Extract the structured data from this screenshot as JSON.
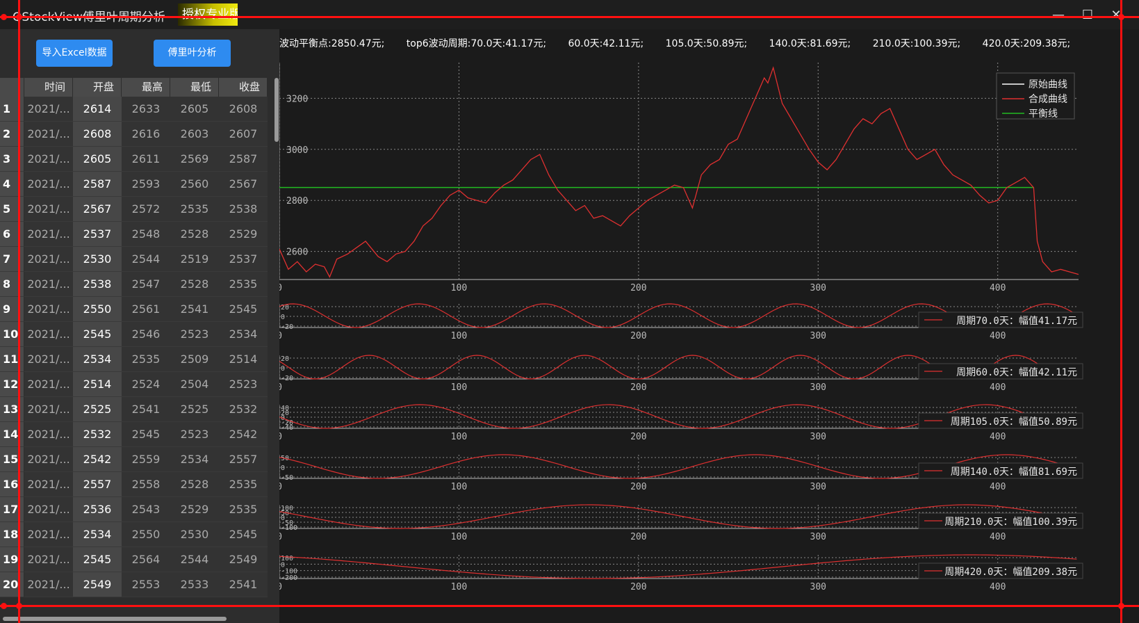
{
  "window": {
    "title": "QStockView傅里叶周期分析",
    "license_badge": "授权专业版",
    "min_glyph": "—",
    "max_glyph": "☐",
    "close_glyph": "✕"
  },
  "toolbar": {
    "import_label": "导入Excel数据",
    "fourier_label": "傅里叶分析"
  },
  "table": {
    "headers": [
      "",
      "时间",
      "开盘",
      "最高",
      "最低",
      "收盘"
    ],
    "rows": [
      [
        "1",
        "2021/...",
        "2614",
        "2633",
        "2605",
        "2608"
      ],
      [
        "2",
        "2021/...",
        "2608",
        "2616",
        "2603",
        "2607"
      ],
      [
        "3",
        "2021/...",
        "2605",
        "2611",
        "2569",
        "2587"
      ],
      [
        "4",
        "2021/...",
        "2587",
        "2593",
        "2560",
        "2567"
      ],
      [
        "5",
        "2021/...",
        "2567",
        "2572",
        "2535",
        "2538"
      ],
      [
        "6",
        "2021/...",
        "2537",
        "2548",
        "2528",
        "2529"
      ],
      [
        "7",
        "2021/...",
        "2530",
        "2544",
        "2519",
        "2537"
      ],
      [
        "8",
        "2021/...",
        "2538",
        "2547",
        "2528",
        "2535"
      ],
      [
        "9",
        "2021/...",
        "2550",
        "2561",
        "2541",
        "2545"
      ],
      [
        "10",
        "2021/...",
        "2545",
        "2546",
        "2523",
        "2534"
      ],
      [
        "11",
        "2021/...",
        "2534",
        "2535",
        "2509",
        "2514"
      ],
      [
        "12",
        "2021/...",
        "2514",
        "2524",
        "2504",
        "2523"
      ],
      [
        "13",
        "2021/...",
        "2525",
        "2541",
        "2525",
        "2532"
      ],
      [
        "14",
        "2021/...",
        "2532",
        "2545",
        "2523",
        "2542"
      ],
      [
        "15",
        "2021/...",
        "2542",
        "2559",
        "2534",
        "2557"
      ],
      [
        "16",
        "2021/...",
        "2557",
        "2558",
        "2528",
        "2535"
      ],
      [
        "17",
        "2021/...",
        "2536",
        "2543",
        "2529",
        "2535"
      ],
      [
        "18",
        "2021/...",
        "2534",
        "2550",
        "2530",
        "2545"
      ],
      [
        "19",
        "2021/...",
        "2545",
        "2564",
        "2544",
        "2549"
      ],
      [
        "20",
        "2021/...",
        "2549",
        "2553",
        "2533",
        "2541"
      ]
    ]
  },
  "summary": {
    "balance": "波动平衡点:2850.47元;",
    "top6": "top6波动周期:70.0天:41.17元;",
    "p2": "60.0天:42.11元;",
    "p3": "105.0天:50.89元;",
    "p4": "140.0天:81.69元;",
    "p5": "210.0天:100.39元;",
    "p6": "420.0天:209.38元;"
  },
  "colors": {
    "curve": "#e03030",
    "balance": "#22bb22",
    "original": "#ffffff",
    "grid": "#8a8a8a",
    "axis": "#bbbbbb"
  },
  "chart_data": [
    {
      "type": "line",
      "xlim": [
        0,
        445
      ],
      "ylim": [
        2490,
        3340
      ],
      "xticks": [
        0,
        100,
        200,
        300,
        400
      ],
      "yticks": [
        2600,
        2800,
        3000,
        3200
      ],
      "grid": true,
      "legend": {
        "position": "top-right",
        "entries": [
          {
            "name": "原始曲线",
            "color": "#ffffff"
          },
          {
            "name": "合成曲线",
            "color": "#e03030"
          },
          {
            "name": "平衡线",
            "color": "#22bb22"
          }
        ]
      },
      "balance_line": {
        "y": 2850.47,
        "x": [
          0,
          420
        ]
      },
      "series": [
        {
          "name": "合成曲线",
          "x": [
            0,
            5,
            10,
            15,
            20,
            25,
            28,
            32,
            38,
            42,
            48,
            55,
            60,
            65,
            70,
            75,
            80,
            85,
            90,
            95,
            100,
            105,
            110,
            115,
            120,
            125,
            130,
            135,
            140,
            145,
            150,
            155,
            160,
            165,
            170,
            175,
            180,
            185,
            190,
            195,
            200,
            205,
            210,
            215,
            220,
            225,
            230,
            235,
            240,
            245,
            250,
            255,
            260,
            265,
            270,
            272,
            275,
            280,
            285,
            290,
            295,
            300,
            305,
            310,
            315,
            320,
            325,
            330,
            335,
            340,
            345,
            350,
            355,
            360,
            365,
            370,
            375,
            380,
            385,
            390,
            395,
            400,
            403,
            405,
            410,
            415,
            420,
            422,
            425,
            430,
            435,
            440,
            445
          ],
          "y": [
            2610,
            2530,
            2560,
            2520,
            2550,
            2540,
            2500,
            2570,
            2590,
            2610,
            2640,
            2580,
            2560,
            2590,
            2600,
            2640,
            2700,
            2730,
            2780,
            2820,
            2840,
            2810,
            2800,
            2790,
            2830,
            2860,
            2880,
            2920,
            2960,
            2980,
            2900,
            2840,
            2800,
            2760,
            2780,
            2730,
            2740,
            2720,
            2700,
            2740,
            2770,
            2800,
            2820,
            2840,
            2860,
            2850,
            2770,
            2900,
            2940,
            2960,
            3020,
            3040,
            3120,
            3200,
            3280,
            3260,
            3320,
            3180,
            3120,
            3060,
            3000,
            2950,
            2920,
            2960,
            3020,
            3080,
            3120,
            3100,
            3140,
            3160,
            3080,
            3000,
            2960,
            2980,
            3000,
            2940,
            2900,
            2880,
            2860,
            2820,
            2790,
            2800,
            2830,
            2850,
            2870,
            2890,
            2850,
            2640,
            2560,
            2520,
            2530,
            2520,
            2510
          ]
        }
      ]
    },
    {
      "type": "line",
      "period": 70.0,
      "amplitude": 41.17,
      "label": "周期70.0天：幅值41.17元",
      "ylim": [
        -41.17,
        41.17
      ],
      "yticks": [
        "20",
        "0",
        "-20"
      ],
      "xticks": [
        0,
        100,
        200,
        300,
        400
      ],
      "xlim": [
        0,
        445
      ],
      "phase": 60
    },
    {
      "type": "line",
      "period": 60.0,
      "amplitude": 42.11,
      "label": "周期60.0天：幅值42.11元",
      "ylim": [
        -42.11,
        42.11
      ],
      "yticks": [
        "20",
        "0",
        "-20"
      ],
      "xticks": [
        0,
        100,
        200,
        300,
        400
      ],
      "xlim": [
        0,
        445
      ],
      "phase": 35
    },
    {
      "type": "line",
      "period": 105.0,
      "amplitude": 50.89,
      "label": "周期105.0天：幅值50.89元",
      "ylim": [
        -50.89,
        50.89
      ],
      "yticks": [
        "40",
        "20",
        "0",
        "-20",
        "-40"
      ],
      "xticks": [
        0,
        100,
        200,
        300,
        400
      ],
      "xlim": [
        0,
        445
      ],
      "phase": 52
    },
    {
      "type": "line",
      "period": 140.0,
      "amplitude": 81.69,
      "label": "周期140.0天：幅值81.69元",
      "ylim": [
        -81.69,
        81.69
      ],
      "yticks": [
        "50",
        "0",
        "-50"
      ],
      "xticks": [
        0,
        100,
        200,
        300,
        400
      ],
      "xlim": [
        0,
        445
      ],
      "phase": 90
    },
    {
      "type": "line",
      "period": 210.0,
      "amplitude": 100.39,
      "label": "周期210.0天：幅值100.39元",
      "ylim": [
        -100.39,
        100.39
      ],
      "yticks": [
        "100",
        "50",
        "0",
        "-50",
        "-100"
      ],
      "xticks": [
        0,
        100,
        200,
        300,
        400
      ],
      "xlim": [
        0,
        445
      ],
      "phase": 120
    },
    {
      "type": "line",
      "period": 420.0,
      "amplitude": 209.38,
      "label": "周期420.0天：幅值209.38元",
      "ylim": [
        -209.38,
        209.38
      ],
      "yticks": [
        "100",
        "0",
        "-100",
        "-200"
      ],
      "xticks": [
        0,
        100,
        200,
        300,
        400
      ],
      "xlim": [
        0,
        445
      ],
      "phase": 280
    }
  ]
}
